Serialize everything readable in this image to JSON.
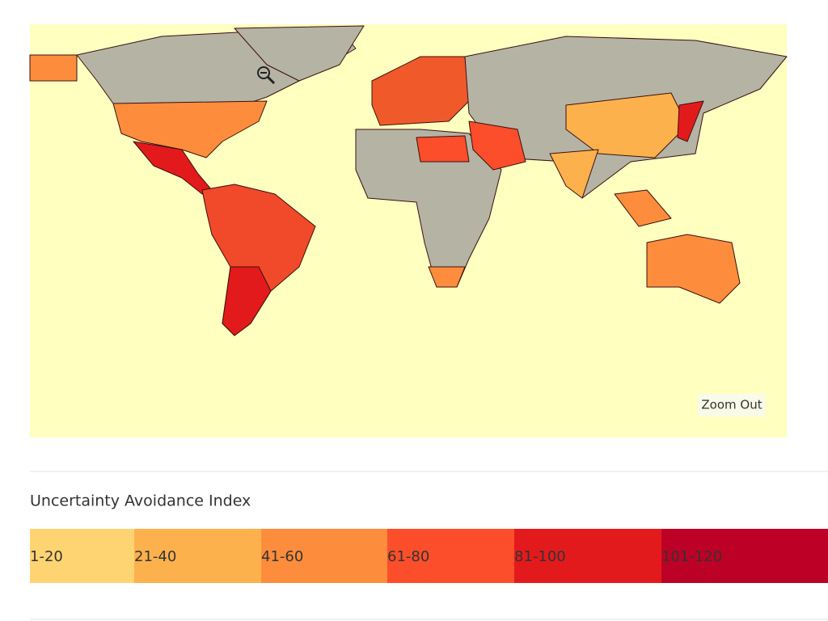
{
  "map": {
    "zoom_button": "Zoom Out"
  },
  "legend": {
    "title": "Uncertainty Avoidance Index",
    "items": [
      {
        "label": "1-20",
        "color": "#fed473"
      },
      {
        "label": "21-40",
        "color": "#fdb14c"
      },
      {
        "label": "41-60",
        "color": "#fd8d3c"
      },
      {
        "label": "61-80",
        "color": "#fc4e2a"
      },
      {
        "label": "81-100",
        "color": "#e31a1c"
      },
      {
        "label": "101-120",
        "color": "#bd0026"
      }
    ]
  }
}
